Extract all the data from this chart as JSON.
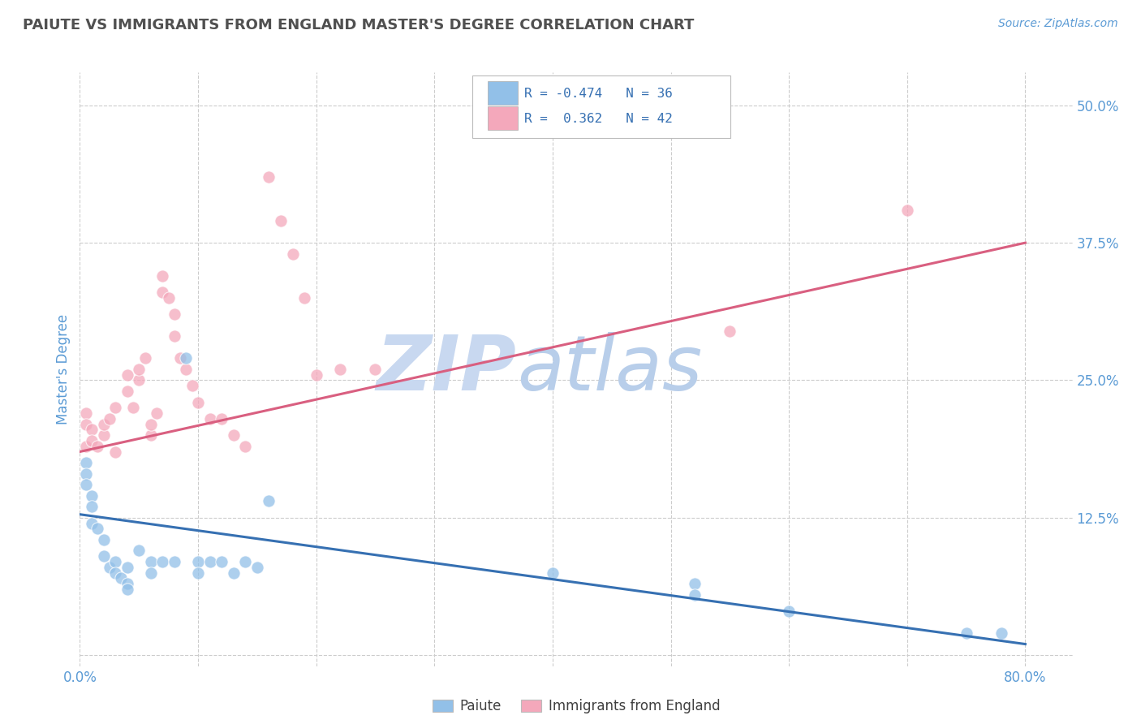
{
  "title": "PAIUTE VS IMMIGRANTS FROM ENGLAND MASTER'S DEGREE CORRELATION CHART",
  "source": "Source: ZipAtlas.com",
  "ylabel": "Master's Degree",
  "x_ticks": [
    0.0,
    0.1,
    0.2,
    0.3,
    0.4,
    0.5,
    0.6,
    0.7,
    0.8
  ],
  "y_ticks": [
    0.0,
    0.125,
    0.25,
    0.375,
    0.5
  ],
  "y_tick_labels": [
    "",
    "12.5%",
    "25.0%",
    "37.5%",
    "50.0%"
  ],
  "xlim": [
    0.0,
    0.84
  ],
  "ylim": [
    -0.01,
    0.53
  ],
  "blue_color": "#92C0E8",
  "pink_color": "#F4A8BB",
  "blue_line_color": "#3670B2",
  "pink_line_color": "#D95F80",
  "legend_r_blue": "R = -0.474",
  "legend_n_blue": "N = 36",
  "legend_r_pink": "R =  0.362",
  "legend_n_pink": "N = 42",
  "watermark_zip": "ZIP",
  "watermark_atlas": "atlas",
  "watermark_color": "#C8D8F0",
  "grid_color": "#CCCCCC",
  "title_color": "#505050",
  "tick_color": "#5B9BD5",
  "blue_scatter_x": [
    0.005,
    0.005,
    0.005,
    0.01,
    0.01,
    0.01,
    0.015,
    0.02,
    0.02,
    0.025,
    0.03,
    0.03,
    0.035,
    0.04,
    0.04,
    0.04,
    0.05,
    0.06,
    0.06,
    0.07,
    0.08,
    0.09,
    0.1,
    0.1,
    0.11,
    0.12,
    0.13,
    0.14,
    0.15,
    0.16,
    0.4,
    0.52,
    0.52,
    0.6,
    0.75,
    0.78
  ],
  "blue_scatter_y": [
    0.175,
    0.165,
    0.155,
    0.145,
    0.135,
    0.12,
    0.115,
    0.105,
    0.09,
    0.08,
    0.085,
    0.075,
    0.07,
    0.08,
    0.065,
    0.06,
    0.095,
    0.085,
    0.075,
    0.085,
    0.085,
    0.27,
    0.085,
    0.075,
    0.085,
    0.085,
    0.075,
    0.085,
    0.08,
    0.14,
    0.075,
    0.065,
    0.055,
    0.04,
    0.02,
    0.02
  ],
  "pink_scatter_x": [
    0.005,
    0.005,
    0.005,
    0.01,
    0.01,
    0.015,
    0.02,
    0.02,
    0.025,
    0.03,
    0.03,
    0.04,
    0.04,
    0.045,
    0.05,
    0.05,
    0.055,
    0.06,
    0.06,
    0.065,
    0.07,
    0.07,
    0.075,
    0.08,
    0.08,
    0.085,
    0.09,
    0.095,
    0.1,
    0.11,
    0.12,
    0.13,
    0.14,
    0.16,
    0.17,
    0.18,
    0.19,
    0.2,
    0.22,
    0.25,
    0.55,
    0.7
  ],
  "pink_scatter_y": [
    0.22,
    0.21,
    0.19,
    0.205,
    0.195,
    0.19,
    0.2,
    0.21,
    0.215,
    0.225,
    0.185,
    0.255,
    0.24,
    0.225,
    0.25,
    0.26,
    0.27,
    0.2,
    0.21,
    0.22,
    0.33,
    0.345,
    0.325,
    0.31,
    0.29,
    0.27,
    0.26,
    0.245,
    0.23,
    0.215,
    0.215,
    0.2,
    0.19,
    0.435,
    0.395,
    0.365,
    0.325,
    0.255,
    0.26,
    0.26,
    0.295,
    0.405
  ],
  "blue_trend_x": [
    0.0,
    0.8
  ],
  "blue_trend_y": [
    0.128,
    0.01
  ],
  "pink_trend_x": [
    0.0,
    0.8
  ],
  "pink_trend_y": [
    0.185,
    0.375
  ]
}
